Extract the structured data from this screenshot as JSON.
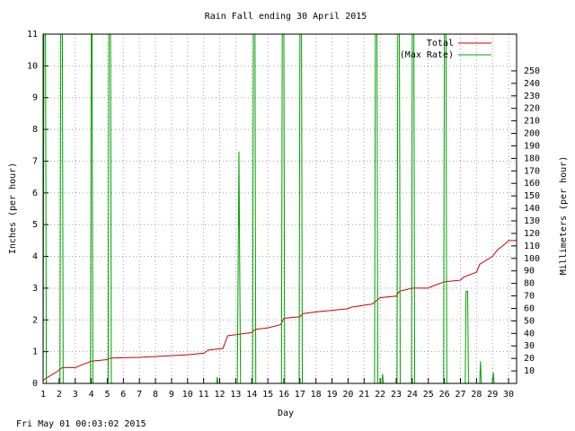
{
  "chart_data": {
    "type": "line",
    "title": "Rain Fall ending 30 April 2015",
    "x_label": "Day",
    "y_label": "Inches (per hour)",
    "y2_label": "Millimeters (per hour)",
    "footer": "Fri May 01 00:03:02 2015",
    "xlim": [
      1,
      30.5
    ],
    "xticks": [
      1,
      2,
      3,
      4,
      5,
      6,
      7,
      8,
      9,
      10,
      11,
      12,
      13,
      14,
      15,
      16,
      17,
      18,
      19,
      20,
      21,
      22,
      23,
      24,
      25,
      26,
      27,
      28,
      29,
      30
    ],
    "ylim": [
      0,
      11
    ],
    "yticks": [
      0,
      1,
      2,
      3,
      4,
      5,
      6,
      7,
      8,
      9,
      10,
      11
    ],
    "y2lim": [
      0,
      279.4
    ],
    "y2ticks": [
      10,
      20,
      30,
      40,
      50,
      60,
      70,
      80,
      90,
      100,
      110,
      120,
      130,
      140,
      150,
      160,
      170,
      180,
      190,
      200,
      210,
      220,
      230,
      240,
      250
    ],
    "grid": true,
    "legend": "top-right",
    "series": [
      {
        "name": "Total",
        "color": "#cc0000",
        "x": [
          1,
          1.3,
          1.8,
          2.2,
          3,
          3.5,
          4,
          5,
          5.2,
          7,
          10,
          11,
          11.3,
          12.2,
          12.5,
          14,
          14.2,
          15,
          15.8,
          16,
          17,
          17.2,
          18,
          19,
          20,
          20.2,
          21.5,
          22,
          23,
          23.2,
          24,
          25,
          25.2,
          26,
          27,
          27.2,
          28,
          28.2,
          29,
          29.3,
          29.8,
          30,
          30.5
        ],
        "values": [
          0.1,
          0.2,
          0.35,
          0.5,
          0.5,
          0.6,
          0.7,
          0.75,
          0.8,
          0.82,
          0.9,
          0.95,
          1.05,
          1.1,
          1.5,
          1.6,
          1.7,
          1.75,
          1.85,
          2.05,
          2.1,
          2.2,
          2.25,
          2.3,
          2.35,
          2.4,
          2.5,
          2.7,
          2.75,
          2.9,
          3.0,
          3.0,
          3.05,
          3.2,
          3.25,
          3.35,
          3.5,
          3.75,
          4.0,
          4.2,
          4.4,
          4.5,
          4.5
        ]
      },
      {
        "name": "(Max Rate)",
        "color": "#00a000",
        "x": [
          1,
          1.05,
          1.1,
          1.15,
          1.2,
          2.05,
          2.1,
          2.2,
          2.25,
          3.95,
          4.0,
          4.05,
          4.1,
          5.05,
          5.1,
          5.2,
          5.25,
          11.8,
          11.85,
          11.9,
          13.1,
          13.2,
          13.3,
          14.05,
          14.1,
          14.2,
          14.25,
          15.85,
          15.9,
          16.0,
          16.05,
          16.95,
          17.0,
          17.1,
          17.15,
          21.65,
          21.7,
          21.8,
          21.85,
          22.1,
          22.15,
          22.2,
          23.05,
          23.1,
          23.2,
          23.25,
          23.95,
          24.0,
          24.1,
          24.15,
          25.95,
          26.0,
          26.1,
          26.15,
          27.3,
          27.35,
          27.45,
          27.5,
          28.2,
          28.25,
          28.3,
          29.0,
          29.05,
          29.1,
          30.5
        ],
        "values": [
          0,
          11,
          11,
          11,
          0,
          0,
          11,
          11,
          0,
          0,
          11,
          11,
          0,
          0,
          11,
          11,
          0,
          0,
          0.2,
          0,
          0,
          7.3,
          0,
          0,
          11,
          11,
          0,
          0,
          11,
          11,
          0,
          0,
          11,
          11,
          0,
          0,
          11,
          11,
          0,
          0,
          0.3,
          0,
          0,
          11,
          11,
          0,
          0,
          11,
          11,
          0,
          0,
          11,
          11,
          0,
          0,
          2.9,
          2.9,
          0,
          0,
          0.7,
          0,
          0,
          0.35,
          0,
          0
        ]
      }
    ]
  }
}
